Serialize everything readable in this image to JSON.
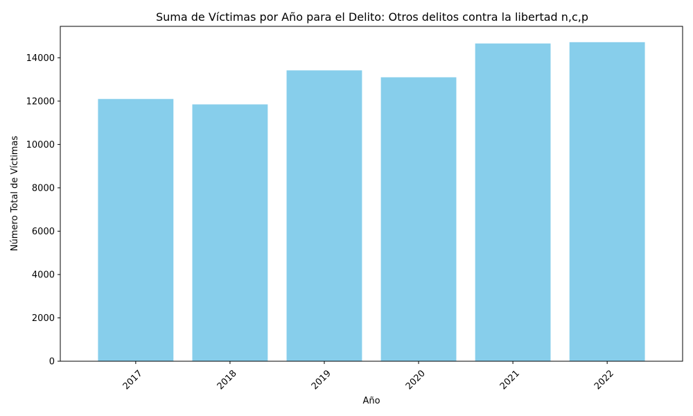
{
  "chart_data": {
    "type": "bar",
    "title": "Suma de Víctimas por Año para el Delito: Otros delitos contra la libertad n,c,p",
    "xlabel": "Año",
    "ylabel": "Número Total de Víctimas",
    "categories": [
      "2017",
      "2018",
      "2019",
      "2020",
      "2021",
      "2022"
    ],
    "values": [
      12100,
      11850,
      13420,
      13100,
      14660,
      14720
    ],
    "ylim": [
      0,
      15450
    ],
    "yticks": [
      0,
      2000,
      4000,
      6000,
      8000,
      10000,
      12000,
      14000
    ],
    "bar_color": "#87ceeb",
    "grid": false,
    "xtick_rotation": 45
  }
}
